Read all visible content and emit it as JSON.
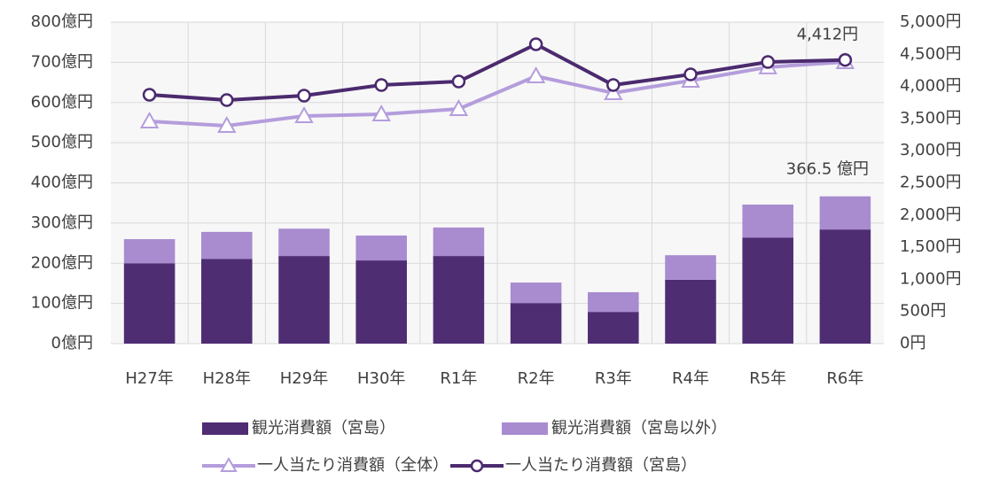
{
  "chart_data": {
    "type": "bar_line",
    "categories": [
      "H27年",
      "H28年",
      "H29年",
      "H30年",
      "R1年",
      "R2年",
      "R3年",
      "R4年",
      "R5年",
      "R6年"
    ],
    "series": [
      {
        "name": "観光消費額（宮島）",
        "kind": "bar",
        "color": "#4f2d73",
        "values": [
          200,
          211,
          218,
          207,
          218,
          101,
          79,
          159,
          264,
          284
        ]
      },
      {
        "name": "観光消費額（宮島以外）",
        "kind": "bar",
        "color": "#a98bd0",
        "values": [
          60,
          67,
          68,
          62,
          71,
          51,
          49,
          61,
          82,
          82.5
        ]
      },
      {
        "name": "一人当たり消費額（全体）",
        "kind": "line",
        "marker": "triangle",
        "axis": "y2",
        "color": "#b49ddc",
        "values": [
          3457,
          3388,
          3540,
          3567,
          3650,
          4160,
          3898,
          4091,
          4300,
          4380
        ]
      },
      {
        "name": "一人当たり消費額（宮島）",
        "kind": "line",
        "marker": "circle",
        "axis": "y2",
        "color": "#4b2a6e",
        "values": [
          3871,
          3788,
          3857,
          4022,
          4077,
          4656,
          4022,
          4187,
          4380,
          4412
        ],
        "value_labels": [
          null,
          null,
          null,
          null,
          null,
          null,
          null,
          null,
          null,
          "4,412円"
        ]
      }
    ],
    "total_labels": [
      {
        "index": 9,
        "value": 366.5,
        "label": "366.5 億円"
      }
    ],
    "ylim": [
      0,
      800
    ],
    "yticks": [
      {
        "value": 0,
        "label": "0億円"
      },
      {
        "value": 100,
        "label": "100億円"
      },
      {
        "value": 200,
        "label": "200億円"
      },
      {
        "value": 300,
        "label": "300億円"
      },
      {
        "value": 400,
        "label": "400億円"
      },
      {
        "value": 500,
        "label": "500億円"
      },
      {
        "value": 600,
        "label": "600億円"
      },
      {
        "value": 700,
        "label": "700億円"
      },
      {
        "value": 800,
        "label": "800億円"
      }
    ],
    "y2lim": [
      0,
      5000
    ],
    "y2ticks": [
      {
        "value": 0,
        "label": "0円"
      },
      {
        "value": 500,
        "label": "500円"
      },
      {
        "value": 1000,
        "label": "1,000円"
      },
      {
        "value": 1500,
        "label": "1,500円"
      },
      {
        "value": 2000,
        "label": "2,000円"
      },
      {
        "value": 2500,
        "label": "2,500円"
      },
      {
        "value": 3000,
        "label": "3,000円"
      },
      {
        "value": 3500,
        "label": "3,500円"
      },
      {
        "value": 4000,
        "label": "4,000円"
      },
      {
        "value": 4500,
        "label": "4,500円"
      },
      {
        "value": 5000,
        "label": "5,000円"
      }
    ],
    "grid": true
  }
}
